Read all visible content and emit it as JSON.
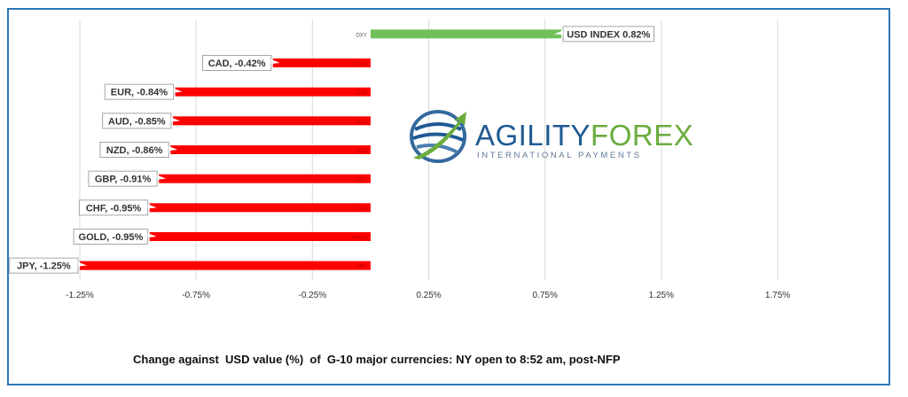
{
  "chart_data": {
    "type": "bar",
    "orientation": "horizontal",
    "categories": [
      "DXY",
      "CAD",
      "EUR",
      "AUD",
      "NZD",
      "GBP",
      "CHF",
      "GOLD",
      "JPY"
    ],
    "values": [
      0.82,
      -0.42,
      -0.84,
      -0.85,
      -0.86,
      -0.91,
      -0.95,
      -0.95,
      -1.25
    ],
    "data_labels": [
      "USD INDEX 0.82%",
      "CAD, -0.42%",
      "EUR, -0.84%",
      "AUD, -0.85%",
      "NZD, -0.86%",
      "GBP, -0.91%",
      "CHF, -0.95%",
      "GOLD, -0.95%",
      "JPY, -1.25%"
    ],
    "xlim": [
      -1.25,
      1.75
    ],
    "xticks": [
      -1.25,
      -0.75,
      -0.25,
      0.25,
      0.75,
      1.25,
      1.75
    ],
    "xtick_labels": [
      "-1.25%",
      "-0.75%",
      "-0.25%",
      "0.25%",
      "0.75%",
      "1.25%",
      "1.75%"
    ],
    "colors": {
      "positive": "#70c05a",
      "negative": "#ff0000"
    },
    "grid": true,
    "legend": "none",
    "caption": "Change against  USD value (%)  of  G-10 major currencies: NY open to 8:52 am, post-NFP"
  },
  "logo": {
    "word_part1": "AGILITY",
    "word_part2": "FOREX",
    "tagline": "INTERNATIONAL PAYMENTS",
    "icon": "globe-arrow-icon",
    "colors": {
      "primary": "#1f5a93",
      "accent": "#6aac3e"
    }
  }
}
